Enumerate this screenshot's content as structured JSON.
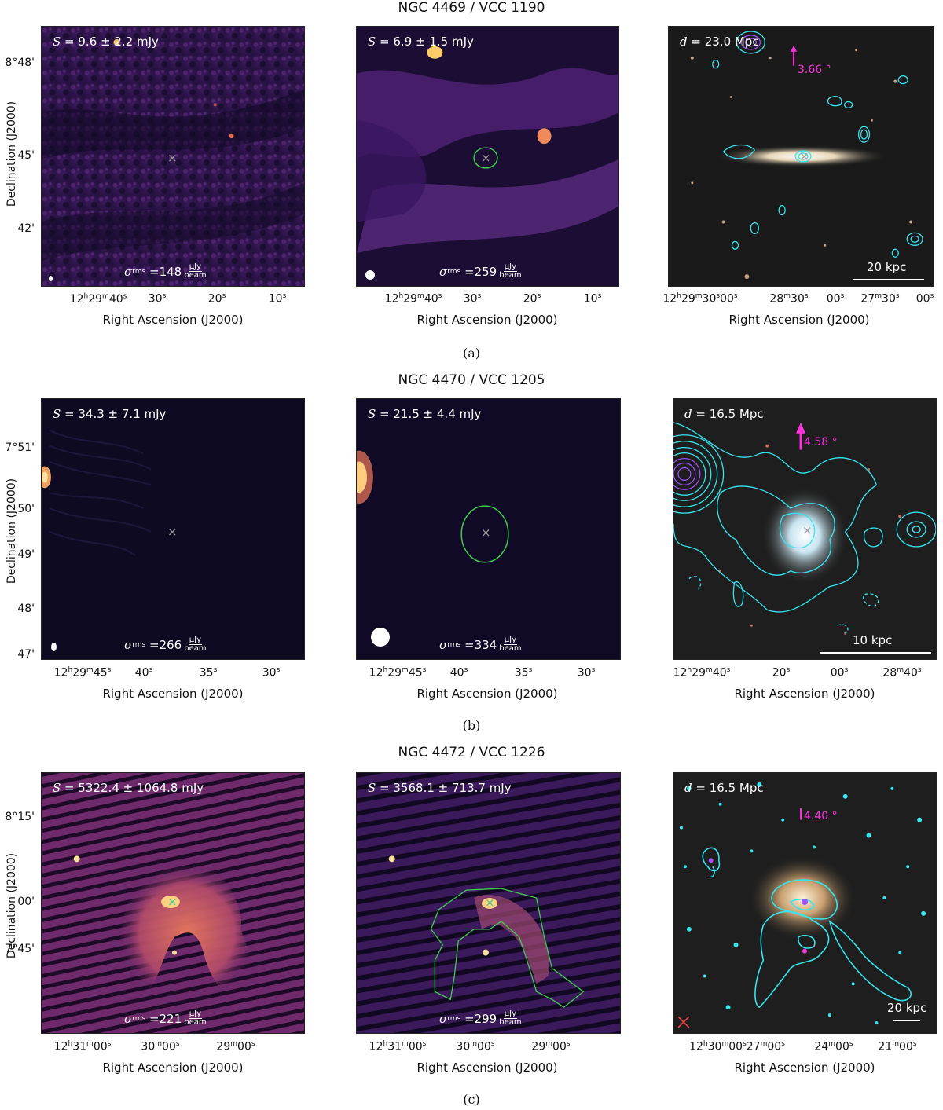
{
  "rows": [
    {
      "title": "NGC 4469 / VCC 1190",
      "caption": "(a)",
      "flux1": "9.6 ± 2.2 mJy",
      "flux2": "6.9 ± 1.5 mJy",
      "rms1": "148",
      "rms2": "259",
      "distance": "23.0 Mpc",
      "angle": "3.66 °",
      "scale": "20 kpc",
      "yticks": [
        "8°48'",
        "45'",
        "42'"
      ],
      "xticks_radio": [
        "12h29m40s",
        "30s",
        "20s",
        "10s"
      ],
      "xticks_optical": [
        "12h29m30s00s",
        "28m30s",
        "00s",
        "27m30s",
        "00s"
      ]
    },
    {
      "title": "NGC 4470 / VCC 1205",
      "caption": "(b)",
      "flux1": "34.3 ± 7.1 mJy",
      "flux2": "21.5 ± 4.4 mJy",
      "rms1": "266",
      "rms2": "334",
      "distance": "16.5 Mpc",
      "angle": "4.58 °",
      "scale": "10 kpc",
      "yticks": [
        "7°51'",
        "50'",
        "49'",
        "48'",
        "47'"
      ],
      "xticks_radio": [
        "12h29m45s",
        "40s",
        "35s",
        "30s"
      ],
      "xticks_optical": [
        "12h29m40s",
        "20s",
        "00s",
        "28m40s"
      ]
    },
    {
      "title": "NGC 4472 / VCC 1226",
      "caption": "(c)",
      "flux1": "5322.4 ± 1064.8 mJy",
      "flux2": "3568.1 ± 713.7 mJy",
      "rms1": "221",
      "rms2": "299",
      "distance": "16.5 Mpc",
      "angle": "4.40 °",
      "scale": "20 kpc",
      "yticks": [
        "8°15'",
        "00'",
        "7°45'"
      ],
      "xticks_radio": [
        "12h31m00s",
        "30m00s",
        "29m00s"
      ],
      "xticks_optical": [
        "12h30m00s27m00s",
        "24m00s",
        "21m00s"
      ]
    }
  ],
  "labels": {
    "flux_symbol": "S",
    "rms_symbol": "σ",
    "rms_sub": "rms",
    "rms_unit_num": "μJy",
    "rms_unit_den": "beam",
    "dist_symbol": "d",
    "xaxis": "Right Ascension (J2000)",
    "yaxis": "Declination (J2000)"
  },
  "colors": {
    "contour": "#33e6f0",
    "aperture": "#3ccf4e",
    "arrow": "#ff33dd",
    "magma_dark": "#0d0826",
    "magma_mid": "#6a2a8a",
    "magma_bright": "#e0785a"
  }
}
